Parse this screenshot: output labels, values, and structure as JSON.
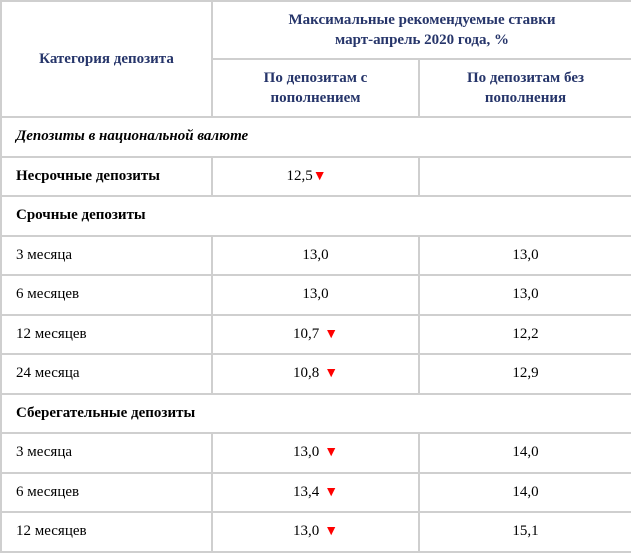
{
  "header": {
    "category": "Категория депозита",
    "group": "Максимальные рекомендуемые ставки март-апрель 2020 года, %",
    "col_with": "По депозитам с пополнением",
    "col_without": "По депозитам без пополнения"
  },
  "arrow_color": "#ff0000",
  "rows": [
    {
      "type": "section",
      "italic": true,
      "label": "Депозиты в национальной валюте"
    },
    {
      "type": "data",
      "bold": true,
      "label": "Несрочные депозиты",
      "with": "12,5",
      "with_down": true,
      "without": ""
    },
    {
      "type": "section",
      "label": "Срочные депозиты"
    },
    {
      "type": "data",
      "label": "3 месяца",
      "with": "13,0",
      "with_down": false,
      "without": "13,0"
    },
    {
      "type": "data",
      "label": "6 месяцев",
      "with": "13,0",
      "with_down": false,
      "without": "13,0"
    },
    {
      "type": "data",
      "label": "12 месяцев",
      "with": "10,7",
      "with_down": true,
      "without": "12,2"
    },
    {
      "type": "data",
      "label": "24 месяца",
      "with": "10,8",
      "with_down": true,
      "without": "12,9"
    },
    {
      "type": "section",
      "label": "Сберегательные депозиты"
    },
    {
      "type": "data",
      "label": "3 месяца",
      "with": "13,0",
      "with_down": true,
      "without": "14,0"
    },
    {
      "type": "data",
      "label": "6 месяцев",
      "with": "13,4",
      "with_down": true,
      "without": "14,0"
    },
    {
      "type": "data",
      "label": "12 месяцев",
      "with": "13,0",
      "with_down": true,
      "without": "15,1"
    }
  ]
}
